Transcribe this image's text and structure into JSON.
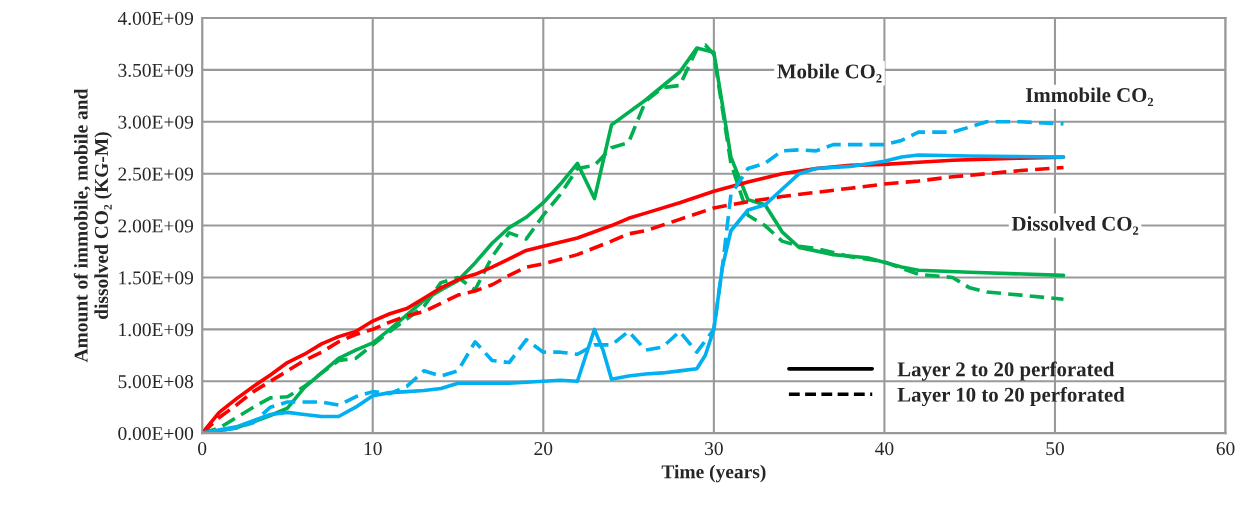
{
  "chart_data": {
    "type": "line",
    "xlabel": "Time (years)",
    "ylabel": "Amount of immobile, mobile and\ndissolved CO₂ (KG-M)",
    "xlim": [
      0,
      60
    ],
    "xticks": [
      0,
      10,
      20,
      30,
      40,
      50,
      60
    ],
    "ylim": [
      0,
      4000000000
    ],
    "yticks": [
      {
        "value": 0,
        "label": "0.00E+00"
      },
      {
        "value": 500000000,
        "label": "5.00E+08"
      },
      {
        "value": 1000000000,
        "label": "1.00E+09"
      },
      {
        "value": 1500000000,
        "label": "1.50E+09"
      },
      {
        "value": 2000000000,
        "label": "2.00E+09"
      },
      {
        "value": 2500000000,
        "label": "2.50E+09"
      },
      {
        "value": 3000000000,
        "label": "3.00E+09"
      },
      {
        "value": 3500000000,
        "label": "3.50E+09"
      },
      {
        "value": 4000000000,
        "label": "4.00E+09"
      }
    ],
    "grid": true,
    "marker": "none",
    "annotations": [
      "Mobile CO₂",
      "Immobile CO₂",
      "Dissolved CO₂",
      "Layer 2 to 20 perforated",
      "Layer 10 to 20 perforated"
    ],
    "series": [
      {
        "color": "#00b050",
        "line_style": "solid",
        "x": [
          0,
          2,
          4,
          5,
          6,
          7,
          8,
          9,
          10,
          11,
          12,
          13,
          14,
          15,
          16,
          17,
          18,
          19,
          20,
          21,
          22,
          23,
          24,
          26,
          28,
          29,
          30,
          31,
          32,
          33,
          34,
          35,
          37,
          39,
          41,
          42,
          45,
          50.5
        ],
        "values": [
          0,
          50000000.0,
          170000000.0,
          240000000.0,
          440000000.0,
          580000000.0,
          720000000.0,
          800000000.0,
          870000000.0,
          1000000000.0,
          1140000000.0,
          1280000000.0,
          1380000000.0,
          1470000000.0,
          1640000000.0,
          1830000000.0,
          1980000000.0,
          2080000000.0,
          2220000000.0,
          2400000000.0,
          2600000000.0,
          2260000000.0,
          2970000000.0,
          3210000000.0,
          3480000000.0,
          3710000000.0,
          3670000000.0,
          2660000000.0,
          2250000000.0,
          2200000000.0,
          1940000000.0,
          1790000000.0,
          1720000000.0,
          1690000000.0,
          1600000000.0,
          1570000000.0,
          1550000000.0,
          1520000000.0
        ]
      },
      {
        "color": "#00b050",
        "line_style": "dashed",
        "x": [
          0,
          1,
          2,
          3,
          4,
          5,
          6,
          7,
          8,
          9,
          10,
          11,
          12,
          13,
          14,
          15,
          16,
          17,
          18,
          19,
          20,
          21,
          22,
          23,
          24,
          25,
          26,
          27,
          28,
          29,
          29.5,
          30,
          31,
          32,
          33,
          34,
          35,
          36,
          38,
          40,
          42,
          44,
          45,
          46,
          48,
          50.5
        ],
        "values": [
          0,
          50000000.0,
          150000000.0,
          250000000.0,
          340000000.0,
          350000000.0,
          450000000.0,
          580000000.0,
          700000000.0,
          720000000.0,
          850000000.0,
          980000000.0,
          1100000000.0,
          1220000000.0,
          1450000000.0,
          1500000000.0,
          1380000000.0,
          1700000000.0,
          1930000000.0,
          1870000000.0,
          2100000000.0,
          2300000000.0,
          2550000000.0,
          2580000000.0,
          2750000000.0,
          2800000000.0,
          3200000000.0,
          3330000000.0,
          3350000000.0,
          3700000000.0,
          3740000000.0,
          3650000000.0,
          2600000000.0,
          2100000000.0,
          2000000000.0,
          1850000000.0,
          1800000000.0,
          1780000000.0,
          1700000000.0,
          1650000000.0,
          1530000000.0,
          1500000000.0,
          1400000000.0,
          1360000000.0,
          1330000000.0,
          1290000000.0
        ]
      },
      {
        "color": "#ff0000",
        "line_style": "solid",
        "x": [
          0,
          1,
          2,
          3,
          4,
          5,
          6,
          7,
          8,
          9,
          10,
          11,
          12,
          13,
          14,
          15,
          16,
          17,
          18,
          19,
          20,
          22,
          24,
          25,
          26,
          28,
          30,
          32,
          34,
          36,
          38,
          40,
          42,
          44,
          46,
          48,
          50.5
        ],
        "values": [
          0,
          200000000.0,
          330000000.0,
          450000000.0,
          560000000.0,
          680000000.0,
          760000000.0,
          860000000.0,
          930000000.0,
          980000000.0,
          1080000000.0,
          1150000000.0,
          1200000000.0,
          1300000000.0,
          1400000000.0,
          1480000000.0,
          1530000000.0,
          1600000000.0,
          1680000000.0,
          1760000000.0,
          1800000000.0,
          1880000000.0,
          2000000000.0,
          2070000000.0,
          2120000000.0,
          2220000000.0,
          2330000000.0,
          2420000000.0,
          2500000000.0,
          2550000000.0,
          2580000000.0,
          2590000000.0,
          2610000000.0,
          2630000000.0,
          2640000000.0,
          2650000000.0,
          2660000000.0
        ]
      },
      {
        "color": "#ff0000",
        "line_style": "dashed",
        "x": [
          0,
          1,
          2,
          3,
          4,
          5,
          6,
          7,
          8,
          9,
          10,
          11,
          12,
          13,
          14,
          15,
          16,
          17,
          18,
          19,
          20,
          22,
          24,
          25,
          26,
          28,
          30,
          32,
          34,
          36,
          38,
          40,
          42,
          44,
          46,
          48,
          50.5
        ],
        "values": [
          0,
          150000000.0,
          270000000.0,
          400000000.0,
          500000000.0,
          600000000.0,
          700000000.0,
          780000000.0,
          880000000.0,
          950000000.0,
          1000000000.0,
          1070000000.0,
          1130000000.0,
          1170000000.0,
          1250000000.0,
          1330000000.0,
          1370000000.0,
          1430000000.0,
          1520000000.0,
          1600000000.0,
          1630000000.0,
          1720000000.0,
          1850000000.0,
          1920000000.0,
          1950000000.0,
          2060000000.0,
          2170000000.0,
          2230000000.0,
          2280000000.0,
          2320000000.0,
          2360000000.0,
          2400000000.0,
          2430000000.0,
          2470000000.0,
          2500000000.0,
          2530000000.0,
          2560000000.0
        ]
      },
      {
        "color": "#00b0f0",
        "line_style": "solid",
        "x": [
          0,
          2,
          3,
          4,
          5,
          6,
          7,
          8,
          9,
          10,
          11,
          12,
          13,
          14,
          15,
          16,
          17,
          18,
          19,
          20,
          21,
          22,
          22.5,
          23,
          23.5,
          24,
          25,
          26,
          27,
          28,
          29,
          29.5,
          30,
          30.5,
          31,
          32,
          33,
          34,
          35,
          36,
          38,
          40,
          41,
          42,
          45,
          50.5
        ],
        "values": [
          0,
          60000000.0,
          120000000.0,
          180000000.0,
          200000000.0,
          180000000.0,
          160000000.0,
          160000000.0,
          250000000.0,
          360000000.0,
          390000000.0,
          400000000.0,
          410000000.0,
          430000000.0,
          480000000.0,
          480000000.0,
          480000000.0,
          480000000.0,
          490000000.0,
          500000000.0,
          510000000.0,
          500000000.0,
          750000000.0,
          1000000000.0,
          800000000.0,
          520000000.0,
          550000000.0,
          570000000.0,
          580000000.0,
          600000000.0,
          620000000.0,
          750000000.0,
          1000000000.0,
          1600000000.0,
          1950000000.0,
          2150000000.0,
          2200000000.0,
          2350000000.0,
          2500000000.0,
          2550000000.0,
          2570000000.0,
          2620000000.0,
          2660000000.0,
          2680000000.0,
          2670000000.0,
          2660000000.0
        ]
      },
      {
        "color": "#00b0f0",
        "line_style": "dashed",
        "x": [
          0,
          2,
          3,
          4,
          5,
          6,
          7,
          8,
          9,
          10,
          11,
          12,
          13,
          14,
          15,
          16,
          17,
          18,
          19,
          20,
          21,
          22,
          23,
          24,
          25,
          26,
          27,
          28,
          29,
          30,
          30.5,
          31,
          32,
          33,
          34,
          35,
          36,
          37,
          38,
          40,
          41,
          42,
          44,
          45,
          46,
          48,
          50.5
        ],
        "values": [
          0,
          50000000.0,
          100000000.0,
          250000000.0,
          300000000.0,
          300000000.0,
          300000000.0,
          270000000.0,
          350000000.0,
          400000000.0,
          380000000.0,
          450000000.0,
          600000000.0,
          550000000.0,
          600000000.0,
          880000000.0,
          700000000.0,
          680000000.0,
          900000000.0,
          780000000.0,
          780000000.0,
          760000000.0,
          850000000.0,
          850000000.0,
          980000000.0,
          800000000.0,
          830000000.0,
          980000000.0,
          780000000.0,
          1000000000.0,
          1600000000.0,
          2300000000.0,
          2550000000.0,
          2600000000.0,
          2720000000.0,
          2730000000.0,
          2720000000.0,
          2780000000.0,
          2780000000.0,
          2780000000.0,
          2820000000.0,
          2900000000.0,
          2900000000.0,
          2950000000.0,
          3000000000.0,
          3000000000.0,
          2980000000.0
        ]
      }
    ]
  }
}
